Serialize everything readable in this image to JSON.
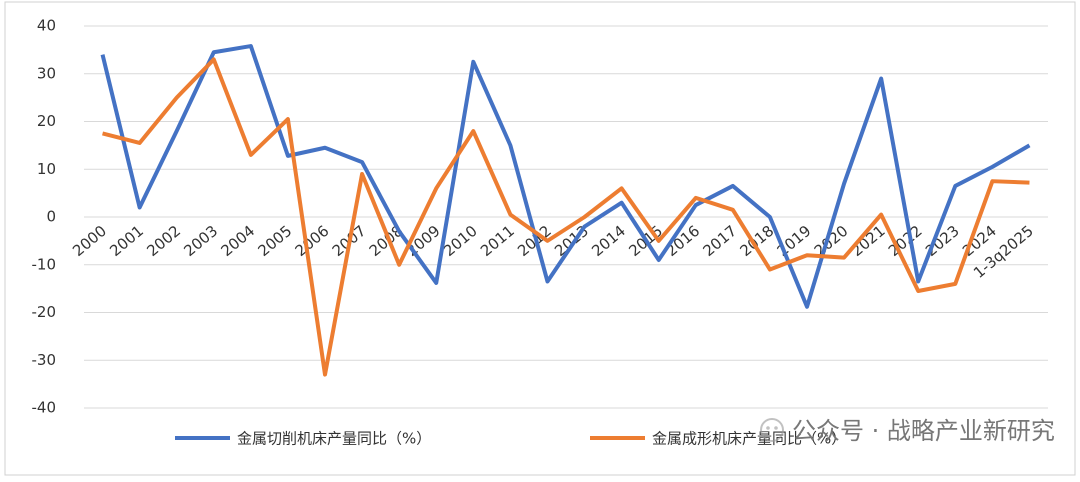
{
  "chart_data": {
    "type": "line",
    "categories": [
      "2000",
      "2001",
      "2002",
      "2003",
      "2004",
      "2005",
      "2006",
      "2007",
      "2008",
      "2009",
      "2010",
      "2011",
      "2012",
      "2013",
      "2014",
      "2015",
      "2016",
      "2017",
      "2018",
      "2019",
      "2020",
      "2021",
      "2022",
      "2023",
      "2024",
      "1-3q2025"
    ],
    "series": [
      {
        "name": "金属切削机床产量同比（%）",
        "color": "#4472c4",
        "values": [
          34,
          2,
          18,
          34.5,
          35.8,
          12.8,
          14.5,
          11.5,
          -3,
          -13.8,
          32.5,
          15,
          -13.5,
          -2,
          3,
          -9,
          2.5,
          6.5,
          0,
          -18.8,
          7,
          29,
          -13.5,
          6.5,
          10.5,
          15
        ]
      },
      {
        "name": "金属成形机床产量同比（%）",
        "color": "#ed7d31",
        "values": [
          17.5,
          15.5,
          25,
          33,
          13,
          20.5,
          -33,
          9,
          -10,
          6,
          18,
          0.5,
          -5,
          0,
          6,
          -5,
          4,
          1.5,
          -11,
          -8,
          -8.5,
          0.5,
          -15.5,
          -14,
          7.5,
          7.2
        ]
      }
    ],
    "ylim": [
      -40,
      40
    ],
    "yticks": [
      -40,
      -30,
      -20,
      -10,
      0,
      10,
      20,
      30,
      40
    ],
    "grid": true,
    "legend": "bottom",
    "watermark": "公众号 · 战略产业新研究"
  }
}
